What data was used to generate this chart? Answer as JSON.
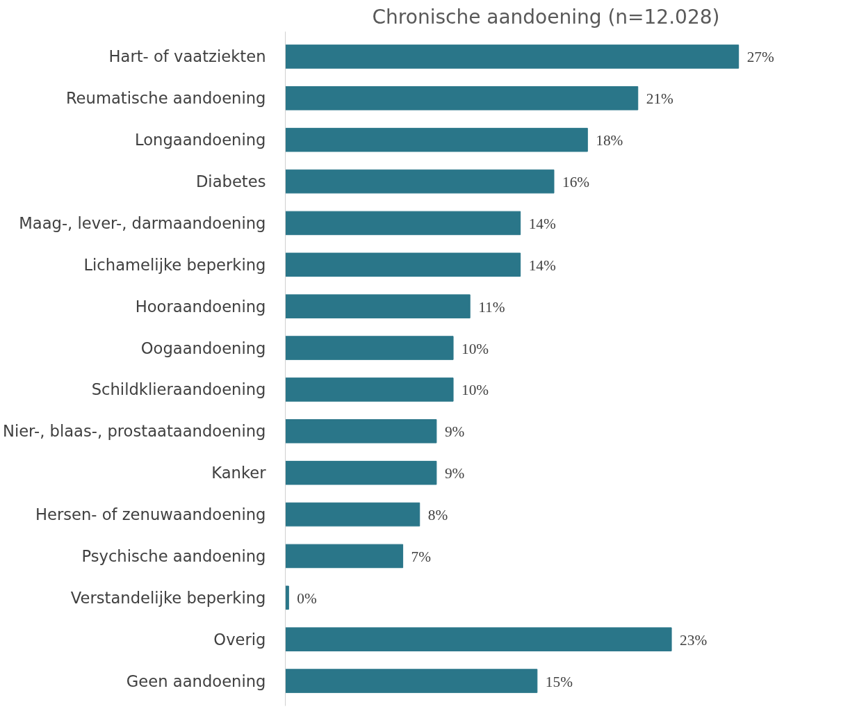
{
  "chart_data": {
    "type": "bar",
    "orientation": "horizontal",
    "title": "Chronische aandoening (n=12.028)",
    "categories": [
      "Hart- of vaatziekten",
      "Reumatische aandoening",
      "Longaandoening",
      "Diabetes",
      "Maag-, lever-, darmaandoening",
      "Lichamelijke beperking",
      "Hooraandoening",
      "Oogaandoening",
      "Schildklieraandoening",
      "Nier-, blaas-, prostaataandoening",
      "Kanker",
      "Hersen- of zenuwaandoening",
      "Psychische aandoening",
      "Verstandelijke beperking",
      "Overig",
      "Geen aandoening"
    ],
    "values": [
      27,
      21,
      18,
      16,
      14,
      14,
      11,
      10,
      10,
      9,
      9,
      8,
      7,
      0.2,
      23,
      15
    ],
    "value_labels": [
      "27%",
      "21%",
      "18%",
      "16%",
      "14%",
      "14%",
      "11%",
      "10%",
      "10%",
      "9%",
      "9%",
      "8%",
      "7%",
      "0%",
      "23%",
      "15%"
    ],
    "color": "#2a7689",
    "grid": false
  }
}
